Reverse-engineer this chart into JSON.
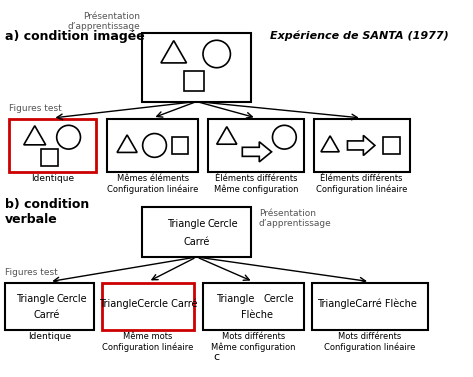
{
  "title_a": "a) condition imagée",
  "title_b": "b) condition\nverbale",
  "subtitle": "Expérience de SANTA (1977)",
  "bg_color": "#ffffff",
  "black": "#000000",
  "red": "#cc0000",
  "gray_text": "#555555",
  "label_figtest": "Figures test",
  "label_pres_app": "Présentation\nd’apprentissage",
  "label_identique_a": "Identique",
  "label_memes": "Mêmes éléments\nConfiguration linéaire",
  "label_elems_diff_meme": "Éléments différents\nMême configuration",
  "label_elems_diff_lin": "Éléments différents\nConfiguration linéaire",
  "label_identique_b": "Identique",
  "label_meme_mots": "Même mots\nConfiguration linéaire",
  "label_mots_diff_meme": "Mots différents\nMême configuration",
  "label_mots_diff_lin": "Mots différents\nConfiguration linéaire"
}
